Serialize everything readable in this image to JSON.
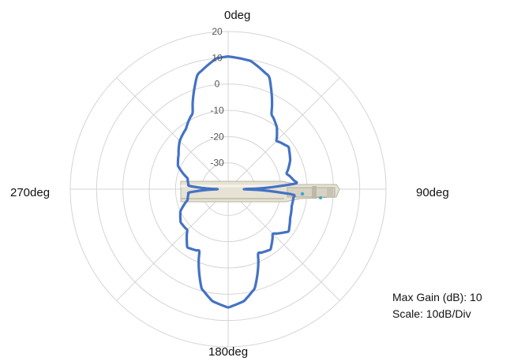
{
  "chart_data": {
    "type": "polar-line",
    "angle_labels": {
      "top": "0deg",
      "right": "90deg",
      "bottom": "180deg",
      "left": "270deg"
    },
    "radial_ticks": [
      "20",
      "10",
      "0",
      "-10",
      "-20",
      "-30"
    ],
    "radial_range_db": [
      -40,
      20
    ],
    "grid": true,
    "line_color": "#4472C4",
    "series": [
      {
        "angles_deg": [
          0,
          10,
          20,
          30,
          38,
          45,
          55,
          65,
          75,
          85,
          90,
          95,
          105,
          115,
          125,
          135,
          145,
          155,
          165,
          172,
          180,
          188,
          195,
          205,
          215,
          225,
          235,
          245,
          255,
          265,
          270,
          275,
          285,
          295,
          305,
          315,
          325,
          335,
          345,
          355
        ],
        "gain_db": [
          10.5,
          9.5,
          5.5,
          -7,
          -10,
          -14,
          -12,
          -14,
          -17,
          -14,
          -34,
          -15,
          -15,
          -14,
          -12,
          -16,
          -12,
          -13,
          -1,
          3,
          5,
          3,
          -1,
          -14,
          -13,
          -18,
          -18,
          -20,
          -24,
          -25,
          -36,
          -25,
          -24,
          -19,
          -17,
          -14,
          -12,
          -8,
          5,
          10
        ]
      }
    ],
    "annotations": [
      "Max Gain (dB): 10",
      "Scale: 10dB/Div"
    ]
  },
  "info": {
    "max_gain": "Max Gain (dB): 10",
    "scale": "Scale: 10dB/Div"
  },
  "device_image": "antenna-device-photo"
}
